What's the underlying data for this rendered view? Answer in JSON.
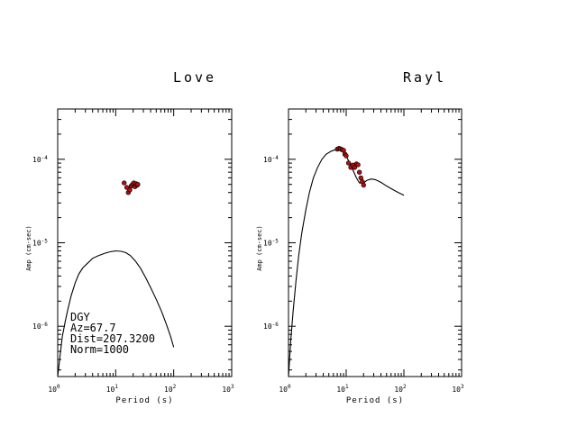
{
  "chart_data": [
    {
      "type": "scatter",
      "title": "Love",
      "xlabel": "Period (s)",
      "ylabel": "Amp (cm-sec)",
      "x_scale": "log",
      "y_scale": "log",
      "xlim": [
        1,
        1000
      ],
      "ylim": [
        2.5e-07,
        0.0004
      ],
      "x_tick_labels": [
        {
          "base": "10",
          "exp": "0"
        },
        {
          "base": "10",
          "exp": "1"
        },
        {
          "base": "10",
          "exp": "2"
        },
        {
          "base": "10",
          "exp": "3"
        }
      ],
      "y_tick_labels": [
        {
          "base": "10",
          "exp": "-4"
        },
        {
          "base": "10",
          "exp": "-5"
        },
        {
          "base": "10",
          "exp": "-6"
        }
      ],
      "grid": false,
      "series": [
        {
          "kind": "line",
          "color": "#000000",
          "x": [
            1.0,
            1.1,
            1.2,
            1.35,
            1.5,
            1.7,
            2.0,
            2.3,
            2.7,
            3.2,
            4.0,
            5.0,
            6.5,
            8.0,
            10.0,
            12.5,
            15.0,
            18.0,
            22.0,
            27.0,
            33.0,
            40.0,
            50.0,
            62.0,
            75.0,
            88.0,
            100.0
          ],
          "y": [
            2.5e-07,
            4.5e-07,
            7.5e-07,
            1.15e-06,
            1.6e-06,
            2.3e-06,
            3.3e-06,
            4.2e-06,
            5e-06,
            5.6e-06,
            6.5e-06,
            7e-06,
            7.5e-06,
            7.8e-06,
            8e-06,
            7.9e-06,
            7.6e-06,
            7e-06,
            6e-06,
            4.9e-06,
            3.8e-06,
            2.9e-06,
            2.1e-06,
            1.5e-06,
            1.05e-06,
            7.6e-07,
            5.6e-07
          ]
        },
        {
          "kind": "points",
          "color": "#b01010",
          "x": [
            14.0,
            15.5,
            16.5,
            17.5,
            18.5,
            19.5,
            20.5,
            21.5,
            22.5,
            23.5,
            24.0
          ],
          "y": [
            5.2e-05,
            4.6e-05,
            4e-05,
            4.3e-05,
            4.8e-05,
            5e-05,
            5.2e-05,
            4.7e-05,
            5.1e-05,
            4.9e-05,
            5e-05
          ]
        }
      ],
      "info": [
        "DGY",
        "Az=67.7",
        "Dist=207.3200",
        "Norm=1000"
      ]
    },
    {
      "type": "scatter",
      "title": "Rayl",
      "xlabel": "Period (s)",
      "ylabel": "Amp (cm-sec)",
      "x_scale": "log",
      "y_scale": "log",
      "xlim": [
        1,
        1000
      ],
      "ylim": [
        2.5e-07,
        0.0004
      ],
      "x_tick_labels": [
        {
          "base": "10",
          "exp": "0"
        },
        {
          "base": "10",
          "exp": "1"
        },
        {
          "base": "10",
          "exp": "2"
        },
        {
          "base": "10",
          "exp": "3"
        }
      ],
      "y_tick_labels": [
        {
          "base": "10",
          "exp": "-4"
        },
        {
          "base": "10",
          "exp": "-5"
        },
        {
          "base": "10",
          "exp": "-6"
        }
      ],
      "grid": false,
      "series": [
        {
          "kind": "line",
          "color": "#000000",
          "x": [
            1.0,
            1.1,
            1.2,
            1.35,
            1.5,
            1.7,
            2.0,
            2.3,
            2.7,
            3.2,
            3.8,
            4.5,
            5.5,
            6.5,
            7.5,
            8.5,
            9.5,
            10.5,
            11.5,
            13.0,
            15.0,
            17.0,
            20.0,
            23.0,
            27.0,
            32.0,
            40.0,
            50.0,
            62.0,
            80.0,
            100.0
          ],
          "y": [
            2.5e-07,
            7e-07,
            1.5e-06,
            3.5e-06,
            7e-06,
            1.3e-05,
            2.5e-05,
            4e-05,
            6e-05,
            8e-05,
            0.0001,
            0.000115,
            0.000125,
            0.00013,
            0.00013,
            0.000125,
            0.000115,
            0.000102,
            9e-05,
            7.5e-05,
            6e-05,
            5.2e-05,
            5.2e-05,
            5.6e-05,
            5.8e-05,
            5.7e-05,
            5.3e-05,
            4.8e-05,
            4.4e-05,
            4e-05,
            3.7e-05
          ]
        },
        {
          "kind": "points",
          "color": "#b01010",
          "x": [
            7.0,
            7.5,
            8.0,
            8.5,
            9.0,
            9.5,
            10.0,
            11.0,
            12.0,
            13.0,
            14.0,
            15.0,
            16.0,
            17.0,
            18.0,
            19.0,
            20.0
          ],
          "y": [
            0.000132,
            0.000135,
            0.000133,
            0.00013,
            0.000128,
            0.000115,
            0.00011,
            9e-05,
            8e-05,
            8.5e-05,
            8e-05,
            8.8e-05,
            8.6e-05,
            7e-05,
            6e-05,
            5.4e-05,
            4.9e-05
          ]
        }
      ],
      "info": []
    }
  ]
}
